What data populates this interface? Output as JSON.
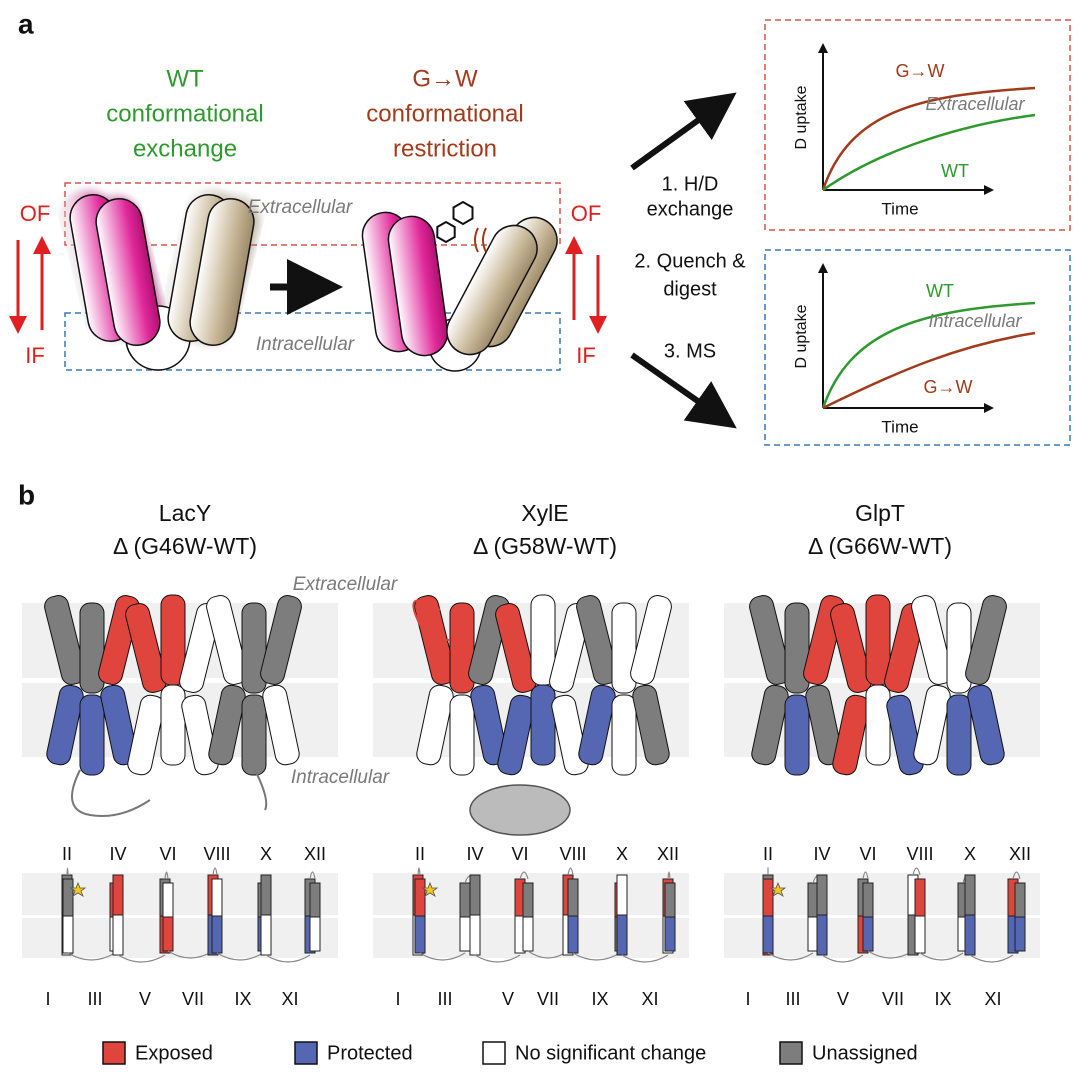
{
  "panel_a": {
    "label": "a",
    "wt_label": [
      "WT",
      "conformational",
      "exchange"
    ],
    "gw_label": [
      "G→W",
      "conformational",
      "restriction"
    ],
    "states": {
      "outward": "OF",
      "inward": "IF"
    },
    "regions": {
      "extracellular": "Extracellular",
      "intracellular": "Intracellular"
    },
    "steps": [
      [
        "1. H/D",
        "exchange"
      ],
      [
        "2. Quench &",
        "digest"
      ],
      [
        "3. MS"
      ]
    ],
    "plots": [
      {
        "y_label": "D uptake",
        "x_label": "Time",
        "curve_labels": [
          "G→W",
          "Extracellular",
          "WT"
        ]
      },
      {
        "y_label": "D uptake",
        "x_label": "Time",
        "curve_labels": [
          "WT",
          "Intracellular",
          "G→W"
        ]
      }
    ]
  },
  "panel_b": {
    "label": "b",
    "proteins": [
      {
        "name": "LacY",
        "delta": "Δ (G46W-WT)"
      },
      {
        "name": "XylE",
        "delta": "Δ (G58W-WT)"
      },
      {
        "name": "GlpT",
        "delta": "Δ (G66W-WT)"
      }
    ],
    "annotations": [
      "Extracellular",
      "Intracellular"
    ],
    "helices_top": [
      "II",
      "IV",
      "VI",
      "VIII",
      "X",
      "XII"
    ],
    "helices_bottom": [
      "I",
      "III",
      "V",
      "VII",
      "IX",
      "XI"
    ],
    "legend": [
      "Exposed",
      "Protected",
      "No significant change",
      "Unassigned"
    ]
  }
}
